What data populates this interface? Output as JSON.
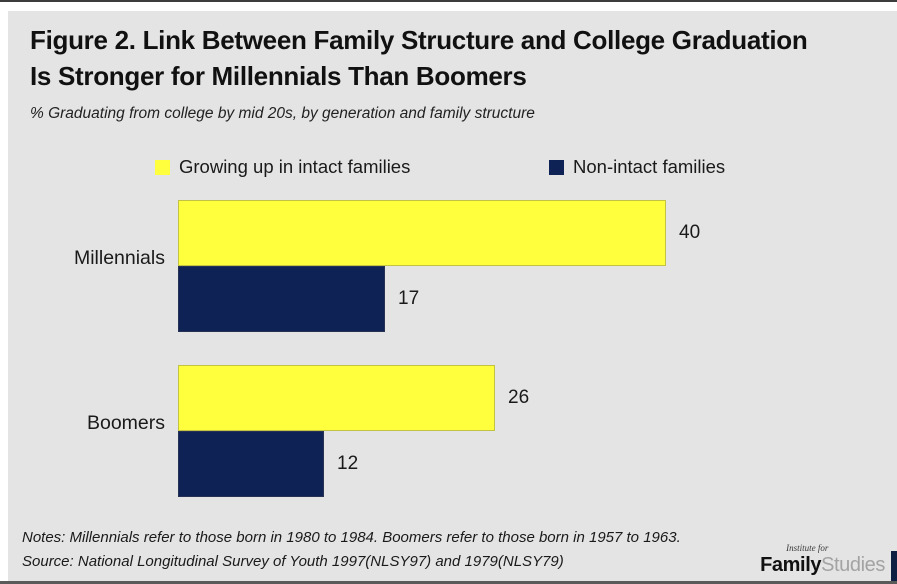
{
  "header": {
    "title_line1": "Figure 2. Link Between Family Structure and College Graduation",
    "title_line2": "Is Stronger for Millennials Than Boomers",
    "subtitle": "% Graduating from college by mid 20s, by generation and family structure"
  },
  "chart_data": {
    "type": "bar",
    "orientation": "horizontal",
    "title": "Figure 2. Link Between Family Structure and College Graduation Is Stronger for Millennials Than Boomers",
    "subtitle": "% Graduating from college by mid 20s, by generation and family structure",
    "categories": [
      "Millennials",
      "Boomers"
    ],
    "series": [
      {
        "name": "Growing up in intact families",
        "color": "#FFFF3D",
        "values": [
          40,
          26
        ]
      },
      {
        "name": "Non-intact families",
        "color": "#0E2256",
        "values": [
          17,
          12
        ]
      }
    ],
    "value_labels_shown": true,
    "xlim": [
      0,
      45
    ],
    "grid": false,
    "axes_visible": false,
    "legend_position": "top"
  },
  "footer": {
    "notes": "Notes: Millennials refer to those born in 1980 to 1984. Boomers refer to those born in 1957 to 1963.",
    "source": "Source: National Longitudinal Survey of Youth 1997(NLSY97) and 1979(NLSY79)"
  },
  "logo": {
    "pre": "Institute for",
    "brand_bold": "Family",
    "brand_light": "Studies"
  },
  "colors": {
    "panel_background": "#e4e4e4",
    "intact_yellow": "#FFFF3D",
    "non_intact_navy": "#0E2256",
    "text": "#1a1a1a",
    "logo_gray": "#a3a3a3"
  }
}
